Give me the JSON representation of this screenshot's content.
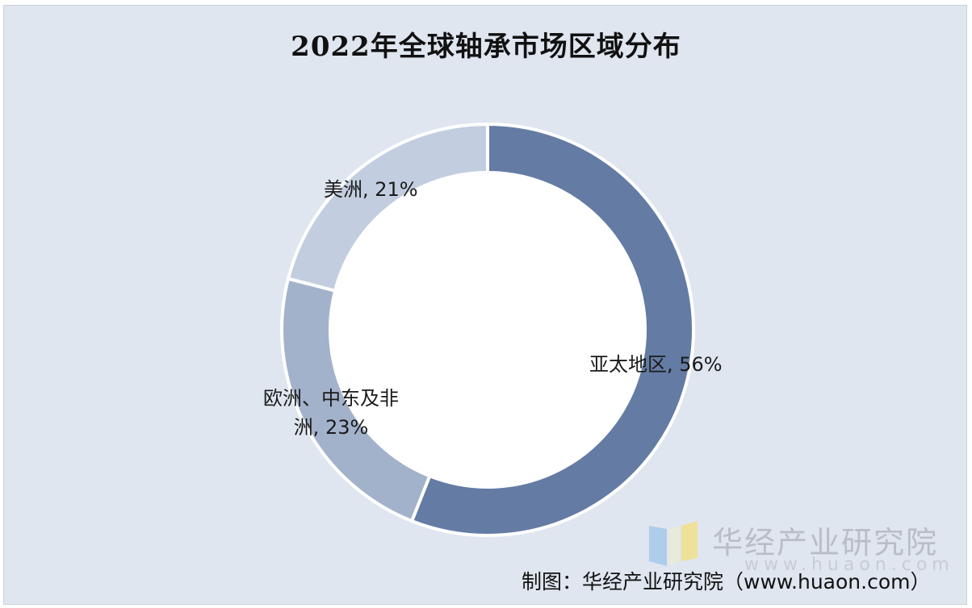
{
  "title": "2022年全球轴承市场区域分布",
  "chart_data": {
    "type": "pie",
    "variant": "donut",
    "title": "2022年全球轴承市场区域分布",
    "slices": [
      {
        "name": "亚太地区",
        "value": 56,
        "label": "亚太地区, 56%",
        "color": "#647ba4"
      },
      {
        "name": "欧洲、中东及非洲",
        "value": 23,
        "label": "欧洲、中东及非洲, 23%",
        "color": "#a3b2cb"
      },
      {
        "name": "美洲",
        "value": 21,
        "label": "美洲, 21%",
        "color": "#c2cedf"
      }
    ],
    "start": "top, clockwise"
  },
  "labels": {
    "asia": "亚太地区, 56%",
    "america": "美洲, 21%",
    "europe_line1": "欧洲、中东及非",
    "europe_line2": "洲, 23%"
  },
  "watermark": {
    "name": "华经产业研究院",
    "url": "www.huaon.com"
  },
  "source": "制图：华经产业研究院（www.huaon.com）"
}
